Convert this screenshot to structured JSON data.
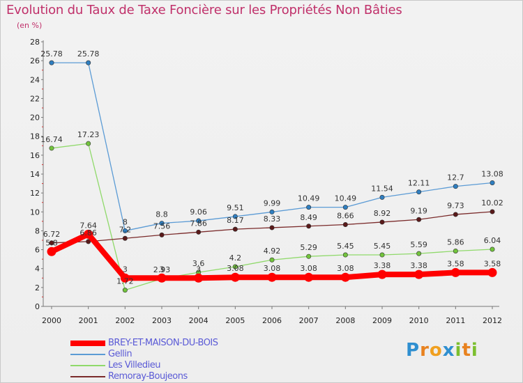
{
  "title": "Evolution du Taux de Taxe Foncière sur les Propriétés Non Bâties",
  "subtitle": "(en %)",
  "brand": {
    "text": "Proxiti",
    "letters": [
      "P",
      "r",
      "o",
      "x",
      "i",
      "t",
      "i"
    ],
    "colors": [
      "#2f8fd0",
      "#e8821f",
      "#f0a020",
      "#2f8fd0",
      "#7cbf2f",
      "#e8821f",
      "#7cbf2f"
    ]
  },
  "chart_data": {
    "type": "line",
    "title": "Evolution du Taux de Taxe Foncière sur les Propriétés Non Bâties",
    "ylabel": "(en %)",
    "xlabel": "",
    "x": [
      "2000",
      "2001",
      "2002",
      "2003",
      "2004",
      "2005",
      "2006",
      "2007",
      "2008",
      "2009",
      "2010",
      "2011",
      "2012"
    ],
    "ylim": [
      0,
      28
    ],
    "yticks": [
      0,
      2,
      4,
      6,
      8,
      10,
      12,
      14,
      16,
      18,
      20,
      22,
      24,
      26,
      28
    ],
    "grid": false,
    "legend_position": "bottom-left",
    "series": [
      {
        "name": "BREY-ET-MAISON-DU-BOIS",
        "color": "#ff0000",
        "width": "thick",
        "values": [
          5.8,
          7.64,
          3,
          3,
          3,
          3.08,
          3.08,
          3.08,
          3.08,
          3.38,
          3.38,
          3.58,
          3.58
        ],
        "labels": [
          "5.8",
          "7.64",
          "3",
          "3",
          "3",
          "3.08",
          "3.08",
          "3.08",
          "3.08",
          "3.38",
          "3.38",
          "3.58",
          "3.58"
        ]
      },
      {
        "name": "Gellin",
        "color": "#5b9bd5",
        "marker": "#2f7fc1",
        "values": [
          25.78,
          25.78,
          8,
          8.8,
          9.06,
          9.51,
          9.99,
          10.49,
          10.49,
          11.54,
          12.11,
          12.7,
          13.08
        ],
        "labels": [
          "25.78",
          "25.78",
          "8",
          "8.8",
          "9.06",
          "9.51",
          "9.99",
          "10.49",
          "10.49",
          "11.54",
          "12.11",
          "12.7",
          "13.08"
        ]
      },
      {
        "name": "Les Villedieu",
        "color": "#8fd96a",
        "marker": "#72c43c",
        "values": [
          16.74,
          17.23,
          1.72,
          2.93,
          3.6,
          4.2,
          4.92,
          5.29,
          5.45,
          5.45,
          5.59,
          5.86,
          6.04
        ],
        "labels": [
          "16.74",
          "17.23",
          "1.72",
          "2.93",
          "3.6",
          "4.2",
          "4.92",
          "5.29",
          "5.45",
          "5.45",
          "5.59",
          "5.86",
          "6.04"
        ]
      },
      {
        "name": "Remoray-Boujeons",
        "color": "#7a2a2a",
        "marker": "#5a1a1a",
        "values": [
          6.72,
          6.86,
          7.2,
          7.56,
          7.86,
          8.17,
          8.33,
          8.49,
          8.66,
          8.92,
          9.19,
          9.73,
          10.02
        ],
        "labels": [
          "6.72",
          "6.86",
          "7.2",
          "7.56",
          "7.86",
          "8.17",
          "8.33",
          "8.49",
          "8.66",
          "8.92",
          "9.19",
          "9.73",
          "10.02"
        ]
      }
    ]
  }
}
